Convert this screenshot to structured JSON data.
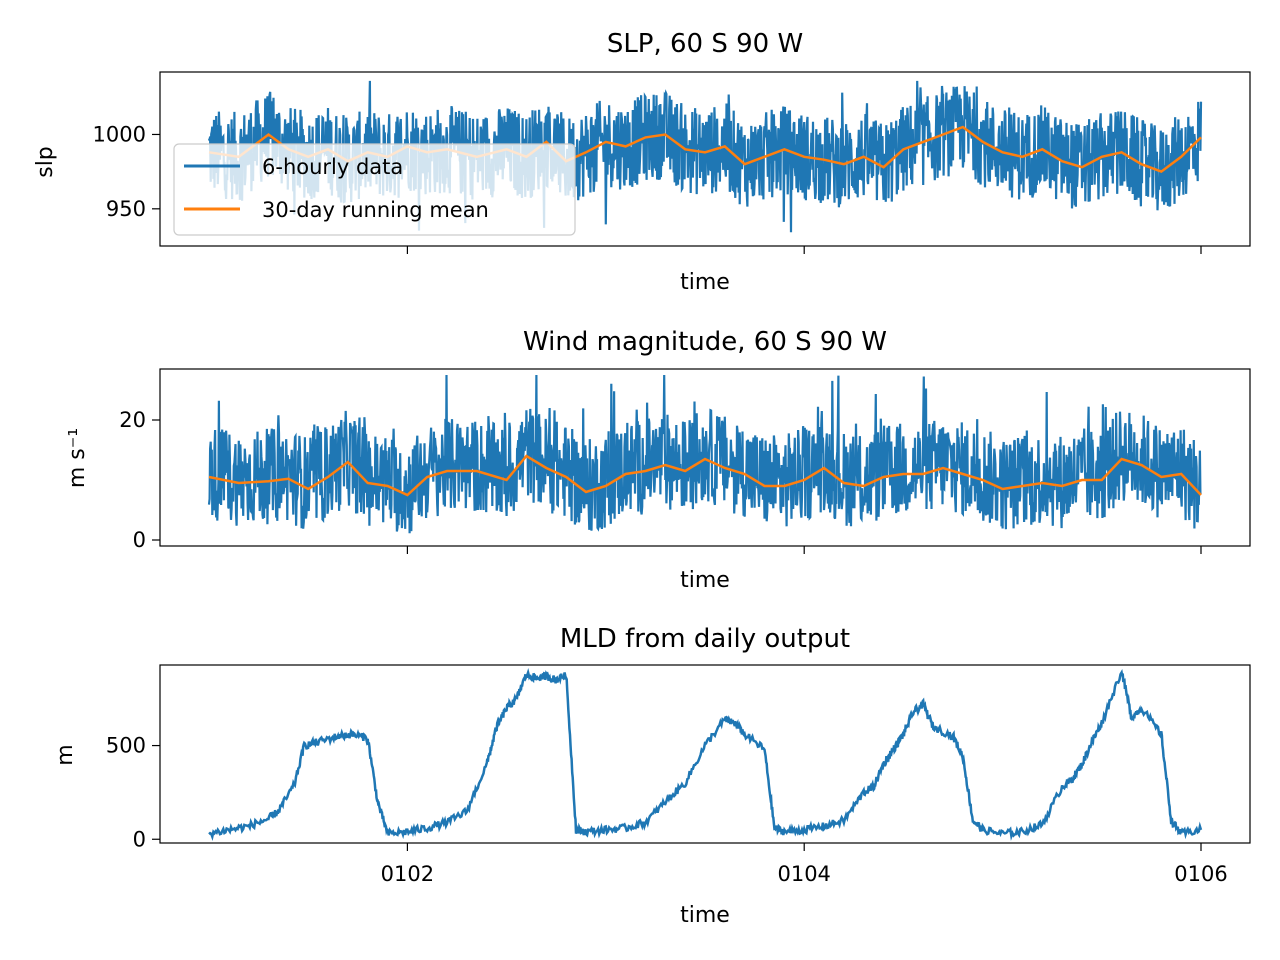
{
  "chart_data": [
    {
      "type": "line",
      "title": "SLP, 60 S 90 W",
      "xlabel": "time",
      "ylabel": "slp",
      "ylim": [
        925,
        1042
      ],
      "yticks": [
        950,
        1000
      ],
      "series": [
        {
          "name": "6-hourly data",
          "color": "#1f77b4",
          "note": "noisy 6-hourly values, approx. 930–1035"
        },
        {
          "name": "30-day running mean",
          "color": "#ff7f0e",
          "x": [
            101.0,
            101.15,
            101.3,
            101.4,
            101.5,
            101.6,
            101.7,
            101.8,
            101.9,
            102.0,
            102.1,
            102.2,
            102.35,
            102.5,
            102.6,
            102.7,
            102.8,
            102.9,
            103.0,
            103.1,
            103.2,
            103.3,
            103.4,
            103.5,
            103.6,
            103.7,
            103.8,
            103.9,
            104.0,
            104.1,
            104.2,
            104.3,
            104.4,
            104.5,
            104.6,
            104.7,
            104.8,
            104.9,
            105.0,
            105.1,
            105.2,
            105.3,
            105.4,
            105.5,
            105.6,
            105.7,
            105.8,
            105.9,
            106.0
          ],
          "y": [
            988,
            985,
            1000,
            990,
            985,
            990,
            982,
            988,
            985,
            992,
            988,
            990,
            985,
            990,
            985,
            995,
            982,
            988,
            995,
            992,
            998,
            1000,
            990,
            988,
            992,
            980,
            985,
            990,
            985,
            983,
            980,
            985,
            978,
            990,
            995,
            1000,
            1005,
            995,
            988,
            985,
            990,
            982,
            978,
            985,
            988,
            980,
            975,
            985,
            998
          ]
        }
      ],
      "legend": "upper-left"
    },
    {
      "type": "line",
      "title": "Wind magnitude, 60 S 90 W",
      "xlabel": "time",
      "ylabel": "m s⁻¹",
      "ylim": [
        -1,
        28.5
      ],
      "yticks": [
        0,
        20
      ],
      "series": [
        {
          "color": "#1f77b4",
          "note": "noisy 6-hourly values, approx. 0–27"
        },
        {
          "color": "#ff7f0e",
          "x": [
            101.0,
            101.15,
            101.3,
            101.4,
            101.5,
            101.6,
            101.7,
            101.8,
            101.9,
            102.0,
            102.1,
            102.2,
            102.35,
            102.5,
            102.6,
            102.7,
            102.8,
            102.9,
            103.0,
            103.1,
            103.2,
            103.3,
            103.4,
            103.5,
            103.6,
            103.7,
            103.8,
            103.9,
            104.0,
            104.1,
            104.2,
            104.3,
            104.4,
            104.5,
            104.6,
            104.7,
            104.8,
            104.9,
            105.0,
            105.1,
            105.2,
            105.3,
            105.4,
            105.5,
            105.6,
            105.7,
            105.8,
            105.9,
            106.0
          ],
          "y": [
            10.5,
            9.5,
            9.8,
            10.2,
            8.5,
            10.5,
            13,
            9.5,
            9,
            7.5,
            10.5,
            11.5,
            11.5,
            10,
            14,
            12,
            10.5,
            8,
            9,
            11,
            11.5,
            12.5,
            11.5,
            13.5,
            12,
            11,
            9,
            9,
            10,
            12,
            9.5,
            9,
            10.5,
            11,
            11,
            12,
            11,
            10,
            8.5,
            9,
            9.5,
            9,
            10,
            10,
            13.5,
            12.5,
            10.5,
            11,
            7.5
          ]
        }
      ]
    },
    {
      "type": "line",
      "title": "MLD from daily output",
      "xlabel": "time",
      "ylabel": "m",
      "ylim": [
        -20,
        930
      ],
      "yticks": [
        0,
        500
      ],
      "xticks": [
        "0102",
        "0104",
        "0106"
      ],
      "series": [
        {
          "color": "#1f77b4",
          "x": [
            101.0,
            101.1,
            101.2,
            101.3,
            101.35,
            101.43,
            101.48,
            101.55,
            101.65,
            101.72,
            101.8,
            101.85,
            101.9,
            102.0,
            102.1,
            102.2,
            102.3,
            102.4,
            102.45,
            102.5,
            102.55,
            102.6,
            102.65,
            102.7,
            102.75,
            102.8,
            102.85,
            102.9,
            103.0,
            103.1,
            103.2,
            103.3,
            103.4,
            103.5,
            103.6,
            103.65,
            103.7,
            103.8,
            103.85,
            103.9,
            104.0,
            104.1,
            104.2,
            104.3,
            104.35,
            104.4,
            104.45,
            104.5,
            104.55,
            104.6,
            104.65,
            104.75,
            104.8,
            104.85,
            104.9,
            105.0,
            105.1,
            105.2,
            105.3,
            105.35,
            105.4,
            105.45,
            105.5,
            105.6,
            105.65,
            105.7,
            105.8,
            105.85,
            105.9,
            106.0
          ],
          "y": [
            30,
            50,
            70,
            110,
            150,
            290,
            500,
            520,
            550,
            560,
            540,
            200,
            30,
            40,
            60,
            90,
            150,
            400,
            600,
            700,
            750,
            880,
            860,
            870,
            850,
            880,
            50,
            40,
            50,
            60,
            90,
            200,
            300,
            500,
            640,
            620,
            560,
            480,
            60,
            40,
            50,
            70,
            100,
            250,
            280,
            400,
            480,
            560,
            680,
            720,
            600,
            550,
            440,
            100,
            50,
            30,
            40,
            80,
            280,
            320,
            400,
            520,
            620,
            900,
            650,
            700,
            560,
            100,
            30,
            50
          ]
        }
      ]
    }
  ]
}
